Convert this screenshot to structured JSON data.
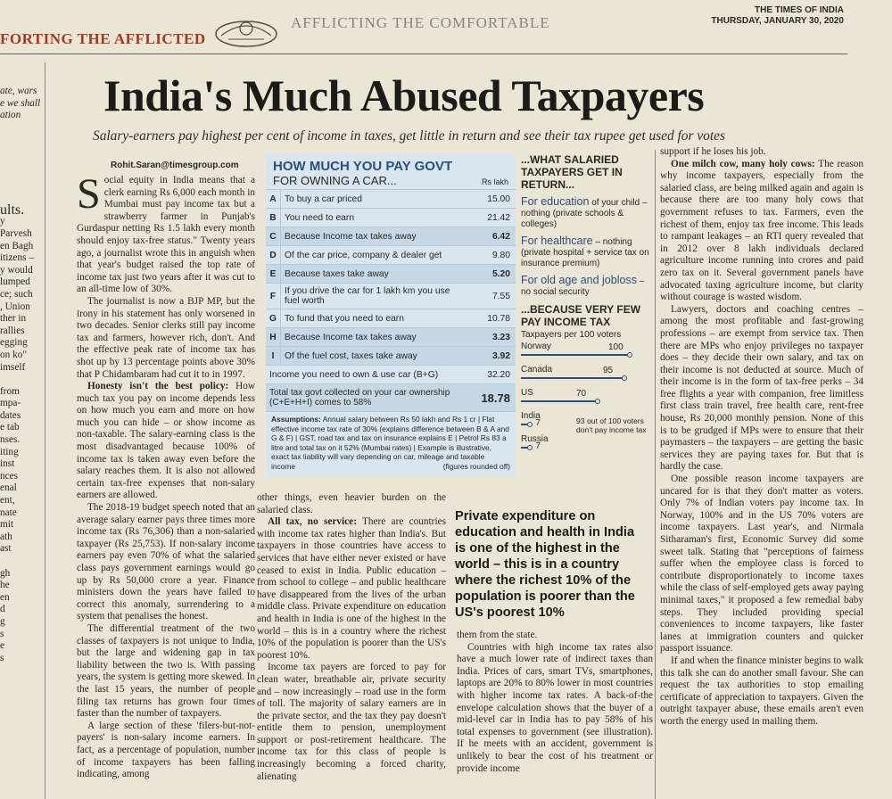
{
  "masthead": {
    "left_banner": "FORTING THE AFFLICTED",
    "right_banner": "AFFLICTING THE COMFORTABLE",
    "paper": "THE TIMES OF INDIA",
    "date": "THURSDAY, JANUARY 30, 2020"
  },
  "headline": "India's Much Abused Taxpayers",
  "subhead": "Salary-earners pay highest per cent of income in taxes, get little in return and see their tax rupee get used for votes",
  "byline": "Rohit.Saran@timesgroup.com",
  "left_strip": {
    "top": [
      "ate, wars",
      "e we shall",
      "ation"
    ],
    "heading": "ults.",
    "lines": [
      "y",
      "Parvesh",
      "en Bagh",
      "itizens –",
      "y would",
      "lumped",
      "ce; such",
      ", Union",
      "ther in",
      "rallies",
      "egging",
      "on ko\"",
      "imself",
      "",
      "from",
      "mpa-",
      "dates",
      "e tab",
      "nses.",
      "iting",
      "inst",
      "nces",
      "enal",
      "ent,",
      "nate",
      "mit",
      "ath",
      "ast",
      "",
      "gh",
      "he",
      "en",
      "d",
      "g",
      "s",
      "e",
      "s"
    ]
  },
  "col1": {
    "drop_cap": "S",
    "p1_lead": "ocial equity in India means that a clerk earning Rs 6,000 each month in Mumbai must pay income tax but a strawberry farmer in Punjab's Gurdaspur netting Rs 1.5 lakh every month should enjoy tax-free status.\" Twenty years ago, a journalist wrote this in anguish when that year's budget raised the top rate of income tax just two years after it was cut to an all-time low of 30%.",
    "p2": "The journalist is now a BJP MP, but the irony in his statement has only worsened in two decades. Senior clerks still pay income tax and farmers, however rich, don't. And the effective peak rate of income tax has shot up by 13 percentage points above 30% that P Chidambaram had cut it to in 1997.",
    "p3_bold": "Honesty isn't the best policy:",
    "p3": "How much tax you pay on income depends less on how much you earn and more on how much you can hide – or show income as non-taxable. The salary-earning class is the most disadvantaged because 100% of income tax is taken away even before the salary reaches them. It is also not allowed certain tax-free expenses that non-salary earners are allowed.",
    "p4": "The 2018-19 budget speech noted that an average salary earner pays three times more income tax (Rs 76,306) than a non-salaried taxpayer (Rs 25,753). If non-salary income earners pay even 70% of what the salaried class pays government earnings would go up by Rs 50,000 crore a year. Finance ministers down the years have failed to correct this anomaly, surrendering to a system that penalises the honest.",
    "p5": "The differential treatment of the two classes of taxpayers is not unique to India, but the large and widening gap in tax liability between the two is. With passing years, the system is getting more skewed. In the last 15 years, the number of people filing tax returns has grown four times faster than the number of taxpayers.",
    "p6": "A large section of these 'filers-but-not-payers' is non-salary income earners. In fact, as a percentage of population, number of income taxpayers has been falling indicating, among"
  },
  "table": {
    "title": "HOW MUCH YOU PAY GOVT",
    "subtitle": "FOR OWNING A CAR...",
    "unit": "Rs lakh",
    "rows": [
      {
        "letter": "A",
        "text": "To buy a car priced",
        "value": "15.00",
        "hl": false
      },
      {
        "letter": "B",
        "text": "You need to earn",
        "value": "21.42",
        "hl": false
      },
      {
        "letter": "C",
        "text": "Because Income tax takes away",
        "value": "6.42",
        "hl": true
      },
      {
        "letter": "D",
        "text": "Of the car price, company & dealer get",
        "value": "9.80",
        "hl": false
      },
      {
        "letter": "E",
        "text": "Because taxes take away",
        "value": "5.20",
        "hl": true
      },
      {
        "letter": "F",
        "text": "If you drive the car for 1 lakh km you use fuel worth",
        "value": "7.55",
        "hl": false
      },
      {
        "letter": "G",
        "text": "To fund that you need to earn",
        "value": "10.78",
        "hl": false
      },
      {
        "letter": "H",
        "text": "Because Income tax takes away",
        "value": "3.23",
        "hl": true
      },
      {
        "letter": "I",
        "text": "Of the fuel cost, taxes take away",
        "value": "3.92",
        "hl": true
      }
    ],
    "income_row": {
      "text": "Income you need to own & use car (B+G)",
      "value": "32.20"
    },
    "total_row": {
      "text": "Total tax govt collected on your car ownership (C+E+H+I) comes to 58%",
      "value": "18.78"
    },
    "assumptions_bold": "Assumptions:",
    "assumptions": "Annual salary between Rs 50 lakh and Rs 1 cr | Flat effective income tax rate of 30% (explains difference between B & A and G & F) | GST, road tax and tax on insurance explains E | Petrol Rs 83 a litre and total tax on it 52% (Mumbai rates) | Example is illustrative, exact tax liability will vary depending on car, mileage and taxable income",
    "rounded": "(figures rounded off)"
  },
  "side": {
    "title1": "...WHAT SALARIED TAXPAYERS GET IN RETURN...",
    "items": [
      {
        "head": "For education",
        "rest": " of your child – nothing (private schools & colleges)"
      },
      {
        "head": "For healthcare",
        "rest": " – nothing (private hospital + service tax on insurance premium)"
      },
      {
        "head": "For old age and jobloss",
        "rest": " – no social security"
      }
    ],
    "title2": "...BECAUSE VERY FEW PAY INCOME TAX",
    "chart_caption": "Taxpayers per 100 voters",
    "note": "93 out of 100 voters don't pay income tax"
  },
  "chart_data": {
    "type": "bar",
    "categories": [
      "Norway",
      "Canada",
      "US",
      "India",
      "Russia"
    ],
    "values": [
      100,
      95,
      70,
      7,
      7
    ],
    "title": "Taxpayers per 100 voters"
  },
  "col2": {
    "p1": "other things, even heavier burden on the salaried class.",
    "p2_bold": "All tax, no service:",
    "p2": "There are countries with income tax rates higher than India's. But taxpayers in those countries have access to services that have either never existed or have ceased to exist in India. Public education – from school to college – and public healthcare have disappeared from the lives of the urban middle class. Private expenditure on education and health in India is one of the highest in the world – this is in a country where the richest 10% of the population is poorer than the US's poorest 10%.",
    "p3": "Income tax payers are forced to pay for clean water, breathable air, private security and – now increasingly – road use in the form of toll. The majority of salary earners are in the private sector, and the tax they pay doesn't entitle them to pension, unemployment support or post-retirement healthcare. The income tax for this class of people is increasingly becoming a forced charity, alienating"
  },
  "pullquote": "Private expenditure on education and health in India is one of the highest in the world – this is in a country where the richest 10% of the population is poorer than the US's poorest 10%",
  "col3": {
    "p1": "them from the state.",
    "p2": "Countries with high income tax rates also have a much lower rate of indirect taxes than India. Prices of cars, smart TVs, smartphones, laptops are 20% to 80% lower in most countries with higher income tax rates. A back-of-the envelope calculation shows that the buyer of a mid-level car in India has to pay 58% of his total expenses to government (see illustration). If he meets with an accident, government is unlikely to bear the cost of his treatment or provide income"
  },
  "col4": {
    "p0": "support if he loses his job.",
    "p1_bold": "One milch cow, many holy cows:",
    "p1": "The reason why income taxpayers, especially from the salaried class, are being milked again and again is because there are too many holy cows that government refuses to tax. Farmers, even the richest of them, enjoy tax free income. This leads to rampant leakages – an RTI query revealed that in 2012 over 8 lakh individuals declared agriculture income running into crores and paid zero tax on it. Several government panels have advocated taxing agriculture income, but clarity without courage is wasted wisdom.",
    "p2": "Lawyers, doctors and coaching centres – among the most profitable and fast-growing professions – are exempt from service tax. Then there are MPs who enjoy privileges no taxpayer does – they decide their own salary, and tax on their income is not deducted at source. Much of their income is in the form of tax-free perks – 34 free flights a year with companion, free limitless first class train travel, free health care, rent-free house, Rs 20,000 monthly pension. None of this is to be grudged if MPs were to ensure that their paymasters – the taxpayers – are getting the basic services they are paying taxes for. But that is hardly the case.",
    "p3": "One possible reason income taxpayers are uncared for is that they don't matter as voters. Only 7% of Indian voters pay income tax. In Norway, 100% and in the US 70% voters are income taxpayers. Last year's, and Nirmala Sitharaman's first, Economic Survey did some sweet talk. Stating that \"perceptions of fairness suffer when the employee class is forced to contribute disproportionately to income taxes while the class of self-employed gets away paying minimal taxes,\" it proposed a few remedial baby steps. They included providing special conveniences to income taxpayers, like faster lanes at immigration counters and quicker passport issuance.",
    "p4": "If and when the finance minister begins to walk this talk she can do another small favour. She can request the tax authorities to stop emailing certificate of appreciation to taxpayers. Given the outright taxpayer abuse, these emails aren't even worth the energy used in mailing them."
  }
}
